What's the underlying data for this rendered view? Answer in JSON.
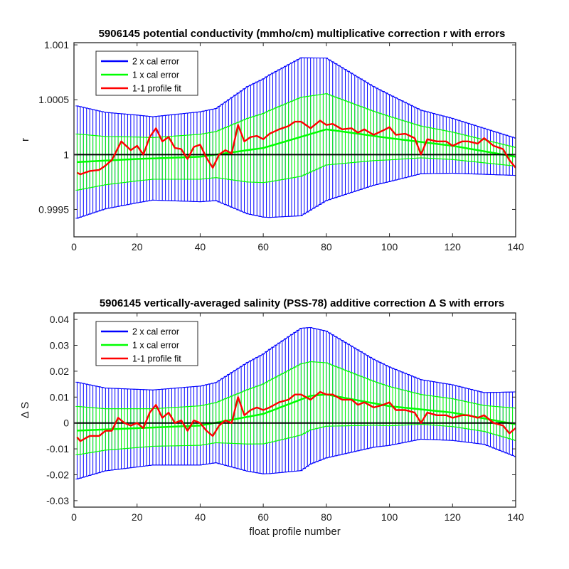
{
  "chart_data": [
    {
      "type": "line",
      "title": "5906145 potential conductivity (mmho/cm) multiplicative correction r with errors",
      "xlabel": "",
      "ylabel": "r",
      "xlim": [
        0,
        140
      ],
      "ylim": [
        0.99925,
        1.00102
      ],
      "xticks": [
        0,
        20,
        40,
        60,
        80,
        100,
        120,
        140
      ],
      "xtick_labels": [
        "0",
        "20",
        "40",
        "60",
        "80",
        "100",
        "120",
        "140"
      ],
      "yticks": [
        0.9995,
        1.0,
        1.0005,
        1.001
      ],
      "ytick_labels": [
        "0.9995",
        "1",
        "1.0005",
        "1.001"
      ],
      "grid": false,
      "legend_position": "top-left",
      "baseline": 1.0,
      "legend": [
        "2 x cal error",
        "1 x cal error",
        "1-1 profile fit"
      ],
      "series": [
        {
          "name": "2 x cal error",
          "color": "#0000ff",
          "kind": "errorbar",
          "half_width_knots": [
            [
              0,
              0.00052
            ],
            [
              10,
              0.00044
            ],
            [
              25,
              0.00038
            ],
            [
              45,
              0.00042
            ],
            [
              55,
              0.00058
            ],
            [
              62,
              0.00065
            ],
            [
              72,
              0.00072
            ],
            [
              80,
              0.00065
            ],
            [
              95,
              0.00045
            ],
            [
              110,
              0.00029
            ],
            [
              130,
              0.00021
            ],
            [
              140,
              0.00017
            ]
          ],
          "fit_knots": [
            [
              0,
              0.99993
            ],
            [
              20,
              0.99996
            ],
            [
              40,
              0.99998
            ],
            [
              60,
              1.00006
            ],
            [
              80,
              1.00023
            ],
            [
              100,
              1.00015
            ],
            [
              120,
              1.00008
            ],
            [
              140,
              0.99998
            ]
          ]
        },
        {
          "name": "1 x cal error",
          "color": "#00ff00",
          "kind": "errorbar",
          "half_width_knots": [
            [
              0,
              0.00026
            ],
            [
              10,
              0.00022
            ],
            [
              25,
              0.00019
            ],
            [
              45,
              0.00021
            ],
            [
              55,
              0.00029
            ],
            [
              62,
              0.000325
            ],
            [
              72,
              0.00036
            ],
            [
              80,
              0.000325
            ],
            [
              95,
              0.000225
            ],
            [
              110,
              0.000145
            ],
            [
              130,
              0.000105
            ],
            [
              140,
              8.5e-05
            ]
          ],
          "fit_knots": [
            [
              0,
              0.99993
            ],
            [
              20,
              0.99996
            ],
            [
              40,
              0.99998
            ],
            [
              60,
              1.00006
            ],
            [
              80,
              1.00023
            ],
            [
              100,
              1.00015
            ],
            [
              120,
              1.00008
            ],
            [
              140,
              0.99998
            ]
          ]
        },
        {
          "name": "1-1 profile fit",
          "color": "#ff0000",
          "kind": "line",
          "knots": [
            [
              0,
              0.99985
            ],
            [
              2,
              0.99982
            ],
            [
              5,
              0.99985
            ],
            [
              8,
              0.99986
            ],
            [
              10,
              0.9999
            ],
            [
              12,
              0.99995
            ],
            [
              15,
              1.00012
            ],
            [
              18,
              1.00004
            ],
            [
              20,
              1.00008
            ],
            [
              22,
              1.0
            ],
            [
              24,
              1.00016
            ],
            [
              26,
              1.00024
            ],
            [
              28,
              1.00012
            ],
            [
              30,
              1.00016
            ],
            [
              32,
              1.00006
            ],
            [
              34,
              1.00005
            ],
            [
              36,
              0.99996
            ],
            [
              38,
              1.00007
            ],
            [
              40,
              1.00009
            ],
            [
              42,
              0.99997
            ],
            [
              44,
              0.99988
            ],
            [
              46,
              1.0
            ],
            [
              48,
              1.00004
            ],
            [
              50,
              1.00001
            ],
            [
              52,
              1.00027
            ],
            [
              54,
              1.00012
            ],
            [
              56,
              1.00016
            ],
            [
              58,
              1.00017
            ],
            [
              60,
              1.00014
            ],
            [
              62,
              1.00019
            ],
            [
              65,
              1.00023
            ],
            [
              68,
              1.00026
            ],
            [
              70,
              1.0003
            ],
            [
              72,
              1.0003
            ],
            [
              75,
              1.00024
            ],
            [
              78,
              1.00031
            ],
            [
              80,
              1.00027
            ],
            [
              82,
              1.00028
            ],
            [
              85,
              1.00023
            ],
            [
              88,
              1.00024
            ],
            [
              90,
              1.0002
            ],
            [
              92,
              1.00023
            ],
            [
              95,
              1.00018
            ],
            [
              98,
              1.00022
            ],
            [
              100,
              1.00025
            ],
            [
              102,
              1.00018
            ],
            [
              105,
              1.00019
            ],
            [
              108,
              1.00015
            ],
            [
              110,
              1.0
            ],
            [
              112,
              1.00014
            ],
            [
              115,
              1.00012
            ],
            [
              118,
              1.00012
            ],
            [
              120,
              1.00008
            ],
            [
              123,
              1.00012
            ],
            [
              125,
              1.00012
            ],
            [
              128,
              1.0001
            ],
            [
              130,
              1.00015
            ],
            [
              133,
              1.00008
            ],
            [
              136,
              1.00005
            ],
            [
              138,
              0.99995
            ],
            [
              140,
              0.99988
            ]
          ]
        }
      ]
    },
    {
      "type": "line",
      "title": "5906145 vertically-averaged salinity (PSS-78) additive correction Δ S with errors",
      "xlabel": "float profile number",
      "ylabel": "Δ S",
      "xlim": [
        0,
        140
      ],
      "ylim": [
        -0.0325,
        0.0425
      ],
      "xticks": [
        0,
        20,
        40,
        60,
        80,
        100,
        120,
        140
      ],
      "xtick_labels": [
        "0",
        "20",
        "40",
        "60",
        "80",
        "100",
        "120",
        "140"
      ],
      "yticks": [
        -0.03,
        -0.02,
        -0.01,
        0,
        0.01,
        0.02,
        0.03,
        0.04
      ],
      "ytick_labels": [
        "-0.03",
        "-0.02",
        "-0.01",
        "0",
        "0.01",
        "0.02",
        "0.03",
        "0.04"
      ],
      "grid": false,
      "legend_position": "top-left",
      "baseline": 0,
      "legend": [
        "2 x cal error",
        "1 x cal error",
        "1-1 profile fit"
      ],
      "series": [
        {
          "name": "2 x cal error",
          "color": "#0000ff",
          "kind": "errorbar",
          "half_width_knots": [
            [
              0,
              0.019
            ],
            [
              10,
              0.016
            ],
            [
              25,
              0.0145
            ],
            [
              45,
              0.0155
            ],
            [
              55,
              0.021
            ],
            [
              62,
              0.024
            ],
            [
              72,
              0.0275
            ],
            [
              80,
              0.0245
            ],
            [
              95,
              0.017
            ],
            [
              110,
              0.0115
            ],
            [
              130,
              0.01
            ],
            [
              140,
              0.0125
            ]
          ],
          "fit_knots": [
            [
              0,
              -0.003
            ],
            [
              20,
              -0.002
            ],
            [
              40,
              -0.001
            ],
            [
              60,
              0.0035
            ],
            [
              75,
              0.0105
            ],
            [
              80,
              0.011
            ],
            [
              100,
              0.0065
            ],
            [
              120,
              0.004
            ],
            [
              140,
              -0.0005
            ]
          ]
        },
        {
          "name": "1 x cal error",
          "color": "#00ff00",
          "kind": "errorbar",
          "half_width_knots": [
            [
              0,
              0.0095
            ],
            [
              10,
              0.008
            ],
            [
              25,
              0.00725
            ],
            [
              45,
              0.00775
            ],
            [
              55,
              0.0105
            ],
            [
              62,
              0.012
            ],
            [
              72,
              0.01375
            ],
            [
              80,
              0.01225
            ],
            [
              95,
              0.0085
            ],
            [
              110,
              0.00575
            ],
            [
              130,
              0.005
            ],
            [
              140,
              0.00625
            ]
          ],
          "fit_knots": [
            [
              0,
              -0.003
            ],
            [
              20,
              -0.002
            ],
            [
              40,
              -0.001
            ],
            [
              60,
              0.0035
            ],
            [
              75,
              0.0105
            ],
            [
              80,
              0.011
            ],
            [
              100,
              0.0065
            ],
            [
              120,
              0.004
            ],
            [
              140,
              -0.0005
            ]
          ]
        },
        {
          "name": "1-1 profile fit",
          "color": "#ff0000",
          "kind": "line",
          "knots": [
            [
              0,
              -0.004
            ],
            [
              2,
              -0.007
            ],
            [
              5,
              -0.005
            ],
            [
              8,
              -0.005
            ],
            [
              10,
              -0.003
            ],
            [
              12,
              -0.003
            ],
            [
              14,
              0.002
            ],
            [
              16,
              0.0
            ],
            [
              18,
              -0.001
            ],
            [
              20,
              0.0
            ],
            [
              22,
              -0.002
            ],
            [
              24,
              0.004
            ],
            [
              26,
              0.007
            ],
            [
              28,
              0.002
            ],
            [
              30,
              0.004
            ],
            [
              32,
              0.0
            ],
            [
              34,
              0.001
            ],
            [
              36,
              -0.003
            ],
            [
              38,
              0.001
            ],
            [
              40,
              0.0
            ],
            [
              42,
              -0.003
            ],
            [
              44,
              -0.005
            ],
            [
              46,
              -0.001
            ],
            [
              48,
              0.001
            ],
            [
              50,
              0.0
            ],
            [
              52,
              0.01
            ],
            [
              54,
              0.003
            ],
            [
              56,
              0.005
            ],
            [
              58,
              0.006
            ],
            [
              60,
              0.005
            ],
            [
              62,
              0.006
            ],
            [
              65,
              0.008
            ],
            [
              68,
              0.009
            ],
            [
              70,
              0.011
            ],
            [
              72,
              0.011
            ],
            [
              75,
              0.009
            ],
            [
              78,
              0.012
            ],
            [
              80,
              0.011
            ],
            [
              82,
              0.011
            ],
            [
              85,
              0.009
            ],
            [
              88,
              0.009
            ],
            [
              90,
              0.007
            ],
            [
              92,
              0.008
            ],
            [
              95,
              0.006
            ],
            [
              98,
              0.007
            ],
            [
              100,
              0.008
            ],
            [
              102,
              0.005
            ],
            [
              105,
              0.005
            ],
            [
              108,
              0.004
            ],
            [
              110,
              0.0
            ],
            [
              112,
              0.004
            ],
            [
              115,
              0.003
            ],
            [
              118,
              0.003
            ],
            [
              120,
              0.002
            ],
            [
              123,
              0.003
            ],
            [
              125,
              0.003
            ],
            [
              128,
              0.002
            ],
            [
              130,
              0.003
            ],
            [
              133,
              0.0
            ],
            [
              136,
              -0.001
            ],
            [
              138,
              -0.004
            ],
            [
              140,
              -0.002
            ]
          ]
        }
      ]
    }
  ]
}
